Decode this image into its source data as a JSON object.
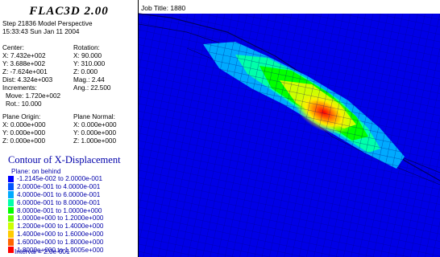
{
  "app_title": "FLAC3D 2.00",
  "step_line": "Step 21836  Model Perspective",
  "datetime_line": "15:33:43 Sun Jan 11 2004",
  "center": {
    "label": "Center:",
    "x": "X: 7.432e+002",
    "y": "Y: 3.688e+002",
    "z": "Z: -7.624e+001"
  },
  "rotation": {
    "label": "Rotation:",
    "x": "X:  90.000",
    "y": "Y: 310.000",
    "z": "Z:   0.000"
  },
  "dist": "Dist: 4.324e+003",
  "mag": "Mag.:    2.44",
  "ang": "Ang.:  22.500",
  "increments_label": "Increments:",
  "move": "Move: 1.720e+002",
  "rot": "Rot.:  10.000",
  "plane_origin": {
    "label": "Plane Origin:",
    "x": "X: 0.000e+000",
    "y": "Y: 0.000e+000",
    "z": "Z: 0.000e+000"
  },
  "plane_normal": {
    "label": "Plane Normal:",
    "x": "X: 0.000e+000",
    "y": "Y: 0.000e+000",
    "z": "Z: 1.000e+000"
  },
  "contour_title": "Contour of X-Displacement",
  "plane_label": "Plane: on behind",
  "legend": [
    {
      "label": "-1.2145e-002 to  2.0000e-001",
      "color": "#0000ff"
    },
    {
      "label": "2.0000e-001 to  4.0000e-001",
      "color": "#0055ff"
    },
    {
      "label": "4.0000e-001 to  6.0000e-001",
      "color": "#00aaff"
    },
    {
      "label": "6.0000e-001 to  8.0000e-001",
      "color": "#00ffaa"
    },
    {
      "label": "8.0000e-001 to  1.0000e+000",
      "color": "#00ff00"
    },
    {
      "label": "1.0000e+000 to  1.2000e+000",
      "color": "#66ff00"
    },
    {
      "label": "1.2000e+000 to  1.4000e+000",
      "color": "#ccff00"
    },
    {
      "label": "1.4000e+000 to  1.6000e+000",
      "color": "#ffcc00"
    },
    {
      "label": "1.6000e+000 to  1.8000e+000",
      "color": "#ff6600"
    },
    {
      "label": "1.8000e+000 to  1.9005e+000",
      "color": "#ff0000"
    }
  ],
  "interval": "Interval =  2.0e-001",
  "job_title": "Job Title: 1880",
  "colors": {
    "model_blue": "#0000e6",
    "mesh_line": "#000080",
    "background": "#ffffff"
  }
}
